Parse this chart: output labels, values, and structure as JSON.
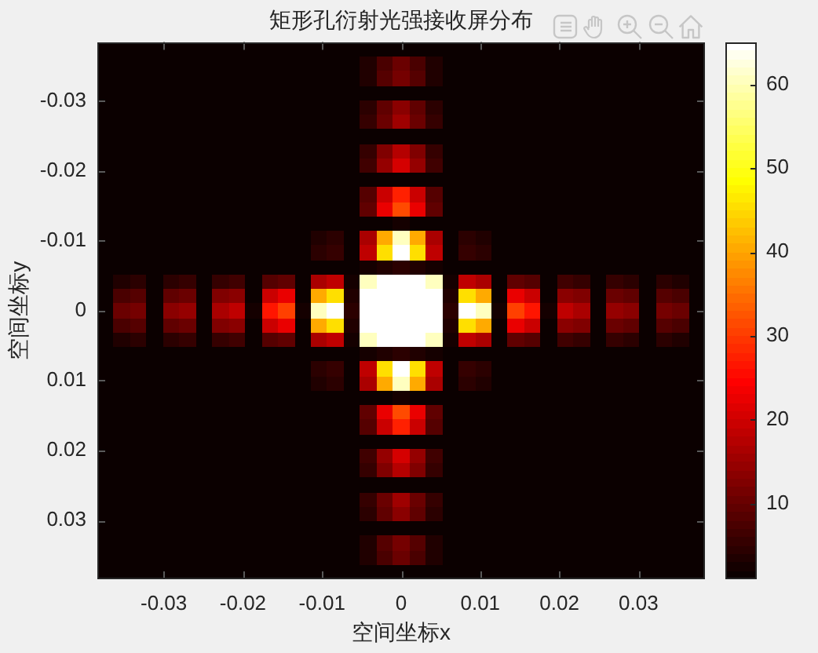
{
  "chart_data": {
    "type": "heatmap",
    "title": "矩形孔衍射光强接收屏分布",
    "xlabel": "空间坐标x",
    "ylabel": "空间坐标y",
    "cells": [
      [
        1,
        1,
        1,
        1,
        1,
        1,
        1,
        1,
        1,
        1,
        1,
        1,
        1,
        1,
        1,
        1,
        1,
        1,
        1,
        1,
        1,
        1,
        1,
        1,
        1,
        1,
        1,
        1,
        1,
        1,
        1,
        1,
        1,
        1,
        1,
        1,
        1
      ],
      [
        1,
        1,
        1,
        1,
        1,
        1,
        1,
        1,
        1,
        1,
        1,
        1,
        1,
        1,
        1,
        1,
        3,
        7,
        10,
        7,
        3,
        1,
        1,
        1,
        1,
        1,
        1,
        1,
        1,
        1,
        1,
        1,
        1,
        1,
        1,
        1,
        1
      ],
      [
        1,
        1,
        1,
        1,
        1,
        1,
        1,
        1,
        1,
        1,
        1,
        1,
        1,
        1,
        1,
        1,
        3,
        8,
        11,
        8,
        3,
        1,
        1,
        1,
        1,
        1,
        1,
        1,
        1,
        1,
        1,
        1,
        1,
        1,
        1,
        1,
        1
      ],
      [
        1,
        1,
        1,
        1,
        1,
        1,
        1,
        1,
        1,
        1,
        1,
        1,
        1,
        1,
        1,
        1,
        1,
        1,
        1,
        1,
        1,
        1,
        1,
        1,
        1,
        1,
        1,
        1,
        1,
        1,
        1,
        1,
        1,
        1,
        1,
        1,
        1
      ],
      [
        1,
        1,
        1,
        1,
        1,
        1,
        1,
        1,
        1,
        1,
        1,
        1,
        1,
        1,
        1,
        1,
        4,
        9,
        13,
        9,
        4,
        1,
        1,
        1,
        1,
        1,
        1,
        1,
        1,
        1,
        1,
        1,
        1,
        1,
        1,
        1,
        1
      ],
      [
        1,
        1,
        1,
        1,
        1,
        1,
        1,
        1,
        1,
        1,
        1,
        1,
        1,
        1,
        1,
        1,
        5,
        10,
        15,
        10,
        5,
        1,
        1,
        1,
        1,
        1,
        1,
        1,
        1,
        1,
        1,
        1,
        1,
        1,
        1,
        1,
        1
      ],
      [
        1,
        1,
        1,
        1,
        1,
        1,
        1,
        1,
        1,
        1,
        1,
        1,
        1,
        1,
        1,
        1,
        1,
        1,
        1,
        1,
        1,
        1,
        1,
        1,
        1,
        1,
        1,
        1,
        1,
        1,
        1,
        1,
        1,
        1,
        1,
        1,
        1
      ],
      [
        1,
        1,
        1,
        1,
        1,
        1,
        1,
        1,
        1,
        1,
        1,
        1,
        1,
        1,
        1,
        1,
        5,
        12,
        17,
        12,
        5,
        1,
        1,
        1,
        1,
        1,
        1,
        1,
        1,
        1,
        1,
        1,
        1,
        1,
        1,
        1,
        1
      ],
      [
        1,
        1,
        1,
        1,
        1,
        1,
        1,
        1,
        1,
        1,
        1,
        1,
        1,
        1,
        1,
        1,
        6,
        14,
        20,
        14,
        6,
        1,
        1,
        1,
        1,
        1,
        1,
        1,
        1,
        1,
        1,
        1,
        1,
        1,
        1,
        1,
        1
      ],
      [
        1,
        1,
        1,
        1,
        1,
        1,
        1,
        1,
        1,
        1,
        1,
        1,
        1,
        1,
        1,
        1,
        1,
        1,
        1,
        1,
        1,
        1,
        1,
        1,
        1,
        1,
        1,
        1,
        1,
        1,
        1,
        1,
        1,
        1,
        1,
        1,
        1
      ],
      [
        1,
        1,
        1,
        1,
        1,
        1,
        1,
        1,
        1,
        1,
        1,
        1,
        1,
        1,
        1,
        1,
        8,
        19,
        27,
        19,
        8,
        1,
        1,
        1,
        1,
        1,
        1,
        1,
        1,
        1,
        1,
        1,
        1,
        1,
        1,
        1,
        1
      ],
      [
        1,
        1,
        1,
        1,
        1,
        1,
        1,
        1,
        1,
        1,
        1,
        1,
        1,
        1,
        1,
        1,
        9,
        22,
        31,
        22,
        9,
        1,
        1,
        1,
        1,
        1,
        1,
        1,
        1,
        1,
        1,
        1,
        1,
        1,
        1,
        1,
        1
      ],
      [
        1,
        1,
        1,
        1,
        1,
        1,
        1,
        1,
        1,
        1,
        1,
        1,
        1,
        1,
        1,
        1,
        1,
        1,
        2,
        1,
        1,
        1,
        1,
        1,
        1,
        1,
        1,
        1,
        1,
        1,
        1,
        1,
        1,
        1,
        1,
        1,
        1
      ],
      [
        1,
        1,
        1,
        1,
        1,
        1,
        1,
        1,
        1,
        1,
        1,
        1,
        1,
        3,
        4,
        1,
        16,
        40,
        60,
        40,
        16,
        1,
        4,
        3,
        1,
        1,
        1,
        1,
        1,
        1,
        1,
        1,
        1,
        1,
        1,
        1,
        1
      ],
      [
        1,
        1,
        1,
        1,
        1,
        1,
        1,
        1,
        1,
        1,
        1,
        1,
        1,
        4,
        5,
        1,
        18,
        45,
        64,
        45,
        18,
        1,
        5,
        4,
        1,
        1,
        1,
        1,
        1,
        1,
        1,
        1,
        1,
        1,
        1,
        1,
        1
      ],
      [
        1,
        1,
        1,
        1,
        1,
        1,
        1,
        1,
        1,
        1,
        1,
        1,
        1,
        1,
        1,
        1,
        2,
        3,
        4,
        3,
        2,
        1,
        1,
        1,
        1,
        1,
        1,
        1,
        1,
        1,
        1,
        1,
        1,
        1,
        1,
        1,
        1
      ],
      [
        1,
        3,
        4,
        1,
        4,
        5,
        1,
        5,
        6,
        1,
        8,
        9,
        1,
        16,
        18,
        2,
        60,
        64,
        64,
        64,
        60,
        2,
        18,
        16,
        1,
        9,
        8,
        1,
        6,
        5,
        1,
        5,
        4,
        1,
        4,
        3,
        1
      ],
      [
        1,
        7,
        8,
        1,
        9,
        10,
        1,
        12,
        13,
        1,
        19,
        22,
        1,
        40,
        45,
        3,
        64,
        64,
        64,
        64,
        64,
        3,
        45,
        40,
        1,
        22,
        19,
        1,
        13,
        12,
        1,
        10,
        9,
        1,
        8,
        7,
        1
      ],
      [
        1,
        10,
        11,
        1,
        13,
        14,
        1,
        16,
        18,
        2,
        26,
        30,
        2,
        60,
        64,
        4,
        64,
        64,
        64,
        64,
        64,
        4,
        64,
        60,
        2,
        30,
        26,
        2,
        18,
        16,
        1,
        14,
        13,
        1,
        11,
        10,
        1
      ],
      [
        1,
        7,
        8,
        1,
        9,
        10,
        1,
        12,
        13,
        1,
        19,
        22,
        1,
        40,
        45,
        3,
        64,
        64,
        64,
        64,
        64,
        3,
        45,
        40,
        1,
        22,
        19,
        1,
        13,
        12,
        1,
        10,
        9,
        1,
        8,
        7,
        1
      ],
      [
        1,
        3,
        4,
        1,
        4,
        5,
        1,
        5,
        6,
        1,
        8,
        9,
        1,
        16,
        18,
        2,
        60,
        64,
        64,
        64,
        60,
        2,
        18,
        16,
        1,
        9,
        8,
        1,
        6,
        5,
        1,
        5,
        4,
        1,
        4,
        3,
        1
      ],
      [
        1,
        1,
        1,
        1,
        1,
        1,
        1,
        1,
        1,
        1,
        1,
        1,
        1,
        1,
        1,
        1,
        2,
        3,
        4,
        3,
        2,
        1,
        1,
        1,
        1,
        1,
        1,
        1,
        1,
        1,
        1,
        1,
        1,
        1,
        1,
        1,
        1
      ],
      [
        1,
        1,
        1,
        1,
        1,
        1,
        1,
        1,
        1,
        1,
        1,
        1,
        1,
        4,
        5,
        1,
        18,
        45,
        64,
        45,
        18,
        1,
        5,
        4,
        1,
        1,
        1,
        1,
        1,
        1,
        1,
        1,
        1,
        1,
        1,
        1,
        1
      ],
      [
        1,
        1,
        1,
        1,
        1,
        1,
        1,
        1,
        1,
        1,
        1,
        1,
        1,
        3,
        4,
        1,
        16,
        40,
        60,
        40,
        16,
        1,
        4,
        3,
        1,
        1,
        1,
        1,
        1,
        1,
        1,
        1,
        1,
        1,
        1,
        1,
        1
      ],
      [
        1,
        1,
        1,
        1,
        1,
        1,
        1,
        1,
        1,
        1,
        1,
        1,
        1,
        1,
        1,
        1,
        1,
        1,
        2,
        1,
        1,
        1,
        1,
        1,
        1,
        1,
        1,
        1,
        1,
        1,
        1,
        1,
        1,
        1,
        1,
        1,
        1
      ],
      [
        1,
        1,
        1,
        1,
        1,
        1,
        1,
        1,
        1,
        1,
        1,
        1,
        1,
        1,
        1,
        1,
        9,
        22,
        31,
        22,
        9,
        1,
        1,
        1,
        1,
        1,
        1,
        1,
        1,
        1,
        1,
        1,
        1,
        1,
        1,
        1,
        1
      ],
      [
        1,
        1,
        1,
        1,
        1,
        1,
        1,
        1,
        1,
        1,
        1,
        1,
        1,
        1,
        1,
        1,
        8,
        19,
        27,
        19,
        8,
        1,
        1,
        1,
        1,
        1,
        1,
        1,
        1,
        1,
        1,
        1,
        1,
        1,
        1,
        1,
        1
      ],
      [
        1,
        1,
        1,
        1,
        1,
        1,
        1,
        1,
        1,
        1,
        1,
        1,
        1,
        1,
        1,
        1,
        1,
        1,
        1,
        1,
        1,
        1,
        1,
        1,
        1,
        1,
        1,
        1,
        1,
        1,
        1,
        1,
        1,
        1,
        1,
        1,
        1
      ],
      [
        1,
        1,
        1,
        1,
        1,
        1,
        1,
        1,
        1,
        1,
        1,
        1,
        1,
        1,
        1,
        1,
        6,
        14,
        20,
        14,
        6,
        1,
        1,
        1,
        1,
        1,
        1,
        1,
        1,
        1,
        1,
        1,
        1,
        1,
        1,
        1,
        1
      ],
      [
        1,
        1,
        1,
        1,
        1,
        1,
        1,
        1,
        1,
        1,
        1,
        1,
        1,
        1,
        1,
        1,
        5,
        12,
        17,
        12,
        5,
        1,
        1,
        1,
        1,
        1,
        1,
        1,
        1,
        1,
        1,
        1,
        1,
        1,
        1,
        1,
        1
      ],
      [
        1,
        1,
        1,
        1,
        1,
        1,
        1,
        1,
        1,
        1,
        1,
        1,
        1,
        1,
        1,
        1,
        1,
        1,
        1,
        1,
        1,
        1,
        1,
        1,
        1,
        1,
        1,
        1,
        1,
        1,
        1,
        1,
        1,
        1,
        1,
        1,
        1
      ],
      [
        1,
        1,
        1,
        1,
        1,
        1,
        1,
        1,
        1,
        1,
        1,
        1,
        1,
        1,
        1,
        1,
        5,
        10,
        15,
        10,
        5,
        1,
        1,
        1,
        1,
        1,
        1,
        1,
        1,
        1,
        1,
        1,
        1,
        1,
        1,
        1,
        1
      ],
      [
        1,
        1,
        1,
        1,
        1,
        1,
        1,
        1,
        1,
        1,
        1,
        1,
        1,
        1,
        1,
        1,
        4,
        9,
        13,
        9,
        4,
        1,
        1,
        1,
        1,
        1,
        1,
        1,
        1,
        1,
        1,
        1,
        1,
        1,
        1,
        1,
        1
      ],
      [
        1,
        1,
        1,
        1,
        1,
        1,
        1,
        1,
        1,
        1,
        1,
        1,
        1,
        1,
        1,
        1,
        1,
        1,
        1,
        1,
        1,
        1,
        1,
        1,
        1,
        1,
        1,
        1,
        1,
        1,
        1,
        1,
        1,
        1,
        1,
        1,
        1
      ],
      [
        1,
        1,
        1,
        1,
        1,
        1,
        1,
        1,
        1,
        1,
        1,
        1,
        1,
        1,
        1,
        1,
        3,
        8,
        11,
        8,
        3,
        1,
        1,
        1,
        1,
        1,
        1,
        1,
        1,
        1,
        1,
        1,
        1,
        1,
        1,
        1,
        1
      ],
      [
        1,
        1,
        1,
        1,
        1,
        1,
        1,
        1,
        1,
        1,
        1,
        1,
        1,
        1,
        1,
        1,
        3,
        7,
        10,
        7,
        3,
        1,
        1,
        1,
        1,
        1,
        1,
        1,
        1,
        1,
        1,
        1,
        1,
        1,
        1,
        1,
        1
      ],
      [
        1,
        1,
        1,
        1,
        1,
        1,
        1,
        1,
        1,
        1,
        1,
        1,
        1,
        1,
        1,
        1,
        1,
        1,
        1,
        1,
        1,
        1,
        1,
        1,
        1,
        1,
        1,
        1,
        1,
        1,
        1,
        1,
        1,
        1,
        1,
        1,
        1
      ]
    ],
    "xlim": [
      -0.0384,
      0.0384
    ],
    "ylim": [
      0.0384,
      -0.0384
    ],
    "xticks": [
      -0.03,
      -0.02,
      -0.01,
      0,
      0.01,
      0.02,
      0.03
    ],
    "yticks": [
      -0.03,
      -0.02,
      -0.01,
      0,
      0.01,
      0.02,
      0.03
    ],
    "clim": [
      1,
      65
    ],
    "cticks": [
      10,
      20,
      30,
      40,
      50,
      60
    ]
  }
}
